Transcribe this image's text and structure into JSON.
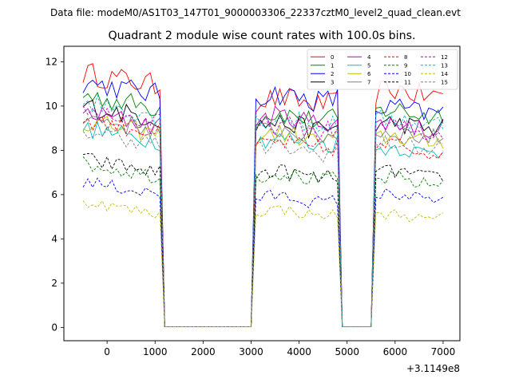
{
  "figure": {
    "suptitle": "Data file: modeM0/AS1T03_147T01_9000003306_22337cztM0_level2_quad_clean.evt"
  },
  "chart_data": {
    "type": "line",
    "title": "Quadrant 2 module wise count rates with 100.0s bins.",
    "xlabel": "",
    "ylabel": "",
    "x_offset_label": "+3.1149e8",
    "xlim": [
      -900,
      7350
    ],
    "ylim": [
      -0.6,
      12.7
    ],
    "xticks": [
      0,
      1000,
      2000,
      3000,
      4000,
      5000,
      6000,
      7000
    ],
    "xtick_labels": [
      "0",
      "1000",
      "2000",
      "3000",
      "4000",
      "5000",
      "6000",
      "7000"
    ],
    "yticks": [
      0,
      2,
      4,
      6,
      8,
      10,
      12
    ],
    "ytick_labels": [
      "0",
      "2",
      "4",
      "6",
      "8",
      "10",
      "12"
    ],
    "grid": false,
    "legend_position": "top-right",
    "legend_columns": 4,
    "segments": [
      {
        "start": -500,
        "end": 1100
      },
      {
        "start": 3100,
        "end": 4800
      },
      {
        "start": 5600,
        "end": 7000
      }
    ],
    "gap_level": 0.03,
    "series": [
      {
        "name": "0",
        "color": "#ff0000",
        "style": "solid",
        "levels": [
          10.9,
          10.2,
          10.6
        ]
      },
      {
        "name": "1",
        "color": "#008000",
        "style": "solid",
        "levels": [
          9.9,
          9.5,
          9.7
        ]
      },
      {
        "name": "2",
        "color": "#0000ff",
        "style": "solid",
        "levels": [
          10.5,
          10.4,
          9.8
        ]
      },
      {
        "name": "3",
        "color": "#000000",
        "style": "solid",
        "levels": [
          9.4,
          9.1,
          9.1
        ]
      },
      {
        "name": "4",
        "color": "#bf00bf",
        "style": "solid",
        "levels": [
          9.1,
          9.4,
          9.1
        ]
      },
      {
        "name": "5",
        "color": "#00bfbf",
        "style": "solid",
        "levels": [
          8.4,
          8.4,
          8.0
        ]
      },
      {
        "name": "6",
        "color": "#bfbf00",
        "style": "solid",
        "levels": [
          8.7,
          8.6,
          8.5
        ]
      },
      {
        "name": "7",
        "color": "#808080",
        "style": "solid",
        "levels": [
          8.9,
          8.8,
          8.7
        ]
      },
      {
        "name": "8",
        "color": "#ff0000",
        "style": "dashed",
        "levels": [
          8.8,
          8.2,
          8.1
        ]
      },
      {
        "name": "9",
        "color": "#008000",
        "style": "dashed",
        "levels": [
          6.8,
          6.8,
          6.6
        ]
      },
      {
        "name": "10",
        "color": "#0000ff",
        "style": "dashed",
        "levels": [
          6.0,
          5.8,
          5.9
        ]
      },
      {
        "name": "11",
        "color": "#000000",
        "style": "dashed",
        "levels": [
          7.0,
          6.9,
          6.9
        ]
      },
      {
        "name": "12",
        "color": "#bf00bf",
        "style": "dashed",
        "levels": [
          9.2,
          9.0,
          8.9
        ]
      },
      {
        "name": "13",
        "color": "#00bfbf",
        "style": "dashed",
        "levels": [
          9.6,
          9.3,
          9.3
        ]
      },
      {
        "name": "14",
        "color": "#bfbf00",
        "style": "dashed",
        "levels": [
          5.1,
          5.2,
          5.0
        ]
      },
      {
        "name": "15",
        "color": "#808080",
        "style": "dashed",
        "levels": [
          8.3,
          8.0,
          8.2
        ]
      }
    ]
  }
}
